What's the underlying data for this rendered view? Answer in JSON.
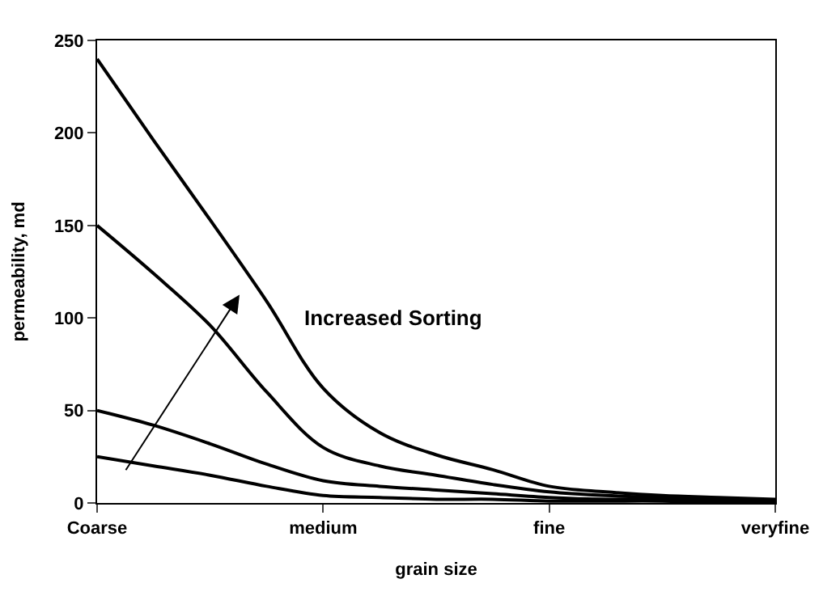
{
  "chart_data": {
    "type": "line",
    "xlabel": "grain size",
    "ylabel": "permeability, md",
    "categories": [
      "Coarse",
      null,
      null,
      null,
      "medium",
      null,
      null,
      null,
      "fine",
      null,
      null,
      null,
      "veryfine"
    ],
    "series": [
      {
        "color": "#000000",
        "values": [
          240,
          196,
          153,
          109,
          62,
          38,
          26,
          18,
          9,
          6,
          4,
          3,
          2
        ]
      },
      {
        "color": "#000000",
        "values": [
          150,
          124,
          96,
          60,
          30,
          20,
          15,
          10,
          6,
          4,
          3,
          2,
          1
        ]
      },
      {
        "color": "#000000",
        "values": [
          50,
          42,
          32,
          21,
          12,
          9,
          7,
          5,
          3,
          2,
          2,
          1,
          1
        ]
      },
      {
        "color": "#000000",
        "values": [
          25,
          20,
          15,
          9,
          4,
          3,
          2,
          2,
          1,
          1,
          1,
          0,
          0
        ]
      }
    ],
    "ylim": [
      0,
      250
    ],
    "yticks": [
      0,
      50,
      100,
      150,
      200,
      250
    ],
    "annotations": [
      "Increased Sorting"
    ],
    "marker": "none",
    "line_style": "solid"
  }
}
